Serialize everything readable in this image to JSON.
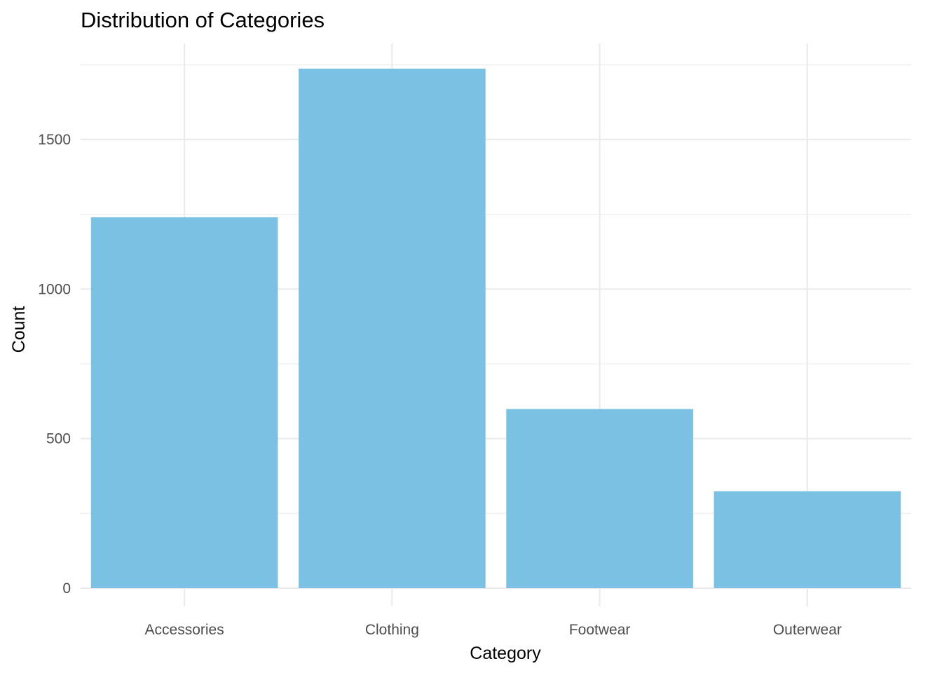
{
  "chart_data": {
    "type": "bar",
    "title": "Distribution of Categories",
    "xlabel": "Category",
    "ylabel": "Count",
    "categories": [
      "Accessories",
      "Clothing",
      "Footwear",
      "Outerwear"
    ],
    "values": [
      1240,
      1737,
      599,
      324
    ],
    "ylim": [
      0,
      1737
    ],
    "y_ticks": [
      0,
      500,
      1000,
      1500
    ],
    "y_tick_labels": [
      "0",
      "500",
      "1000",
      "1500"
    ],
    "grid": true,
    "legend": "none",
    "colors": {
      "bar": "#7AC1E3",
      "grid": "#EBEBEB",
      "tick_text": "#4D4D4D",
      "text": "#000000",
      "background": "#FFFFFF"
    }
  }
}
